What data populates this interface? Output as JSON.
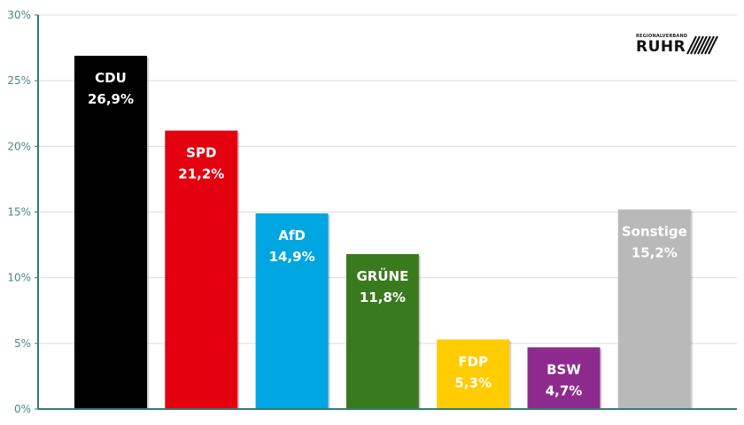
{
  "chart_data": {
    "type": "bar",
    "categories": [
      "CDU",
      "SPD",
      "AfD",
      "GRÜNE",
      "FDP",
      "BSW",
      "Sonstige"
    ],
    "values": [
      26.9,
      21.2,
      14.9,
      11.8,
      5.3,
      4.7,
      15.2
    ],
    "value_labels": [
      "26,9%",
      "21,2%",
      "14,9%",
      "11,8%",
      "5,3%",
      "4,7%",
      "15,2%"
    ],
    "colors": [
      "#000000",
      "#e3000f",
      "#00a6e2",
      "#3a7a1e",
      "#ffcc00",
      "#8e2a8e",
      "#b9b9b9"
    ],
    "label_colors": [
      "#ffffff",
      "#ffffff",
      "#ffffff",
      "#ffffff",
      "#ffffff",
      "#ffffff",
      "#ffffff"
    ],
    "ylim": [
      0,
      30
    ],
    "yticks": [
      0,
      5,
      10,
      15,
      20,
      25,
      30
    ],
    "ytick_labels": [
      "0%",
      "5%",
      "10%",
      "15%",
      "20%",
      "25%",
      "30%"
    ],
    "title": "",
    "xlabel": "",
    "ylabel": "",
    "grid": true,
    "axis_color": "#2f7d74",
    "grid_color": "#dddddd"
  },
  "logo": {
    "small_text": "REGIONALVERBAND",
    "big_text": "RUHR"
  }
}
